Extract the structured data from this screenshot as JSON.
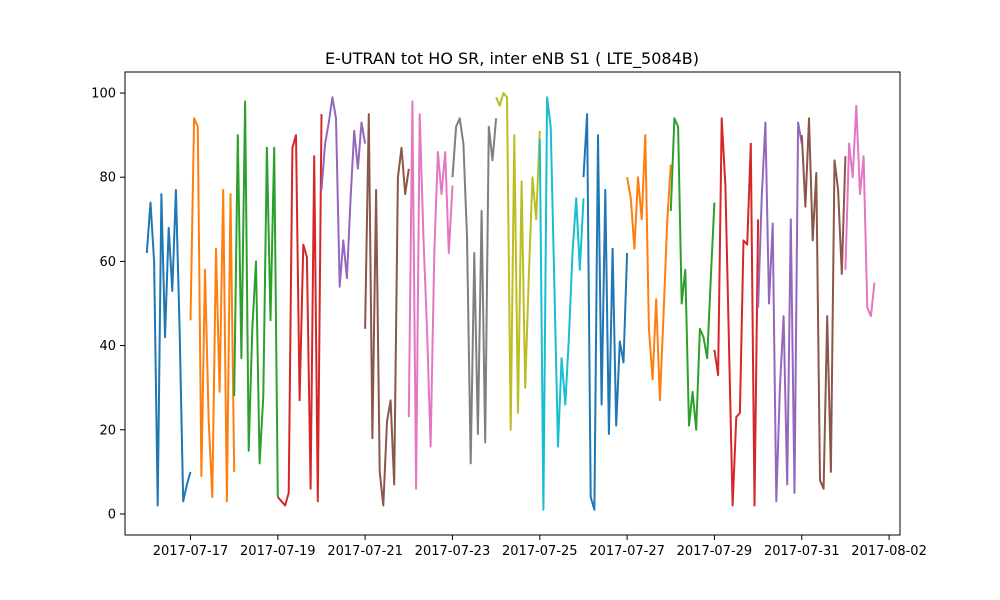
{
  "chart_data": {
    "type": "line",
    "title": "E-UTRAN tot HO SR, inter eNB S1 ( LTE_5084B)",
    "xlabel": "",
    "ylabel": "",
    "xlim": [
      "2017-07-15T12:00",
      "2017-08-02T06:00"
    ],
    "ylim": [
      -5,
      105
    ],
    "x_ticks": [
      "2017-07-17",
      "2017-07-19",
      "2017-07-21",
      "2017-07-23",
      "2017-07-25",
      "2017-07-27",
      "2017-07-29",
      "2017-07-31",
      "2017-08-02"
    ],
    "y_ticks": [
      0,
      20,
      40,
      60,
      80,
      100
    ],
    "grid": false,
    "series": [
      {
        "color": "#1f77b4",
        "x": [
          "2017-07-16T00:00",
          "2017-07-16T02:00",
          "2017-07-16T04:00",
          "2017-07-16T06:00",
          "2017-07-16T08:00",
          "2017-07-16T10:00",
          "2017-07-16T12:00",
          "2017-07-16T14:00",
          "2017-07-16T16:00",
          "2017-07-16T18:00",
          "2017-07-16T20:00",
          "2017-07-16T22:00",
          "2017-07-17T00:00"
        ],
        "values": [
          62,
          74,
          60,
          2,
          76,
          42,
          68,
          53,
          77,
          44,
          3,
          7,
          10
        ]
      },
      {
        "color": "#ff7f0e",
        "x": [
          "2017-07-17T00:00",
          "2017-07-17T02:00",
          "2017-07-17T04:00",
          "2017-07-17T06:00",
          "2017-07-17T08:00",
          "2017-07-17T10:00",
          "2017-07-17T12:00",
          "2017-07-17T14:00",
          "2017-07-17T16:00",
          "2017-07-17T18:00",
          "2017-07-17T20:00",
          "2017-07-17T22:00",
          "2017-07-18T00:00"
        ],
        "values": [
          46,
          94,
          92,
          9,
          58,
          22,
          4,
          63,
          29,
          77,
          3,
          76,
          10
        ]
      },
      {
        "color": "#2ca02c",
        "x": [
          "2017-07-18T00:00",
          "2017-07-18T02:00",
          "2017-07-18T04:00",
          "2017-07-18T06:00",
          "2017-07-18T08:00",
          "2017-07-18T10:00",
          "2017-07-18T12:00",
          "2017-07-18T14:00",
          "2017-07-18T16:00",
          "2017-07-18T18:00",
          "2017-07-18T20:00",
          "2017-07-18T22:00",
          "2017-07-19T00:00"
        ],
        "values": [
          28,
          90,
          37,
          98,
          15,
          44,
          60,
          12,
          28,
          87,
          46,
          87,
          4
        ]
      },
      {
        "color": "#d62728",
        "x": [
          "2017-07-19T00:00",
          "2017-07-19T02:00",
          "2017-07-19T04:00",
          "2017-07-19T06:00",
          "2017-07-19T08:00",
          "2017-07-19T10:00",
          "2017-07-19T12:00",
          "2017-07-19T14:00",
          "2017-07-19T16:00",
          "2017-07-19T18:00",
          "2017-07-19T20:00",
          "2017-07-19T22:00",
          "2017-07-20T00:00"
        ],
        "values": [
          4,
          3,
          2,
          5,
          87,
          90,
          27,
          64,
          61,
          6,
          85,
          3,
          95
        ]
      },
      {
        "color": "#9467bd",
        "x": [
          "2017-07-20T00:00",
          "2017-07-20T02:00",
          "2017-07-20T04:00",
          "2017-07-20T06:00",
          "2017-07-20T08:00",
          "2017-07-20T10:00",
          "2017-07-20T12:00",
          "2017-07-20T14:00",
          "2017-07-20T16:00",
          "2017-07-20T18:00",
          "2017-07-20T20:00",
          "2017-07-20T22:00",
          "2017-07-21T00:00"
        ],
        "values": [
          77,
          88,
          93,
          99,
          94,
          54,
          65,
          56,
          75,
          91,
          82,
          93,
          88
        ]
      },
      {
        "color": "#8c564b",
        "x": [
          "2017-07-21T00:00",
          "2017-07-21T02:00",
          "2017-07-21T04:00",
          "2017-07-21T06:00",
          "2017-07-21T08:00",
          "2017-07-21T10:00",
          "2017-07-21T12:00",
          "2017-07-21T14:00",
          "2017-07-21T16:00",
          "2017-07-21T18:00",
          "2017-07-21T20:00",
          "2017-07-21T22:00",
          "2017-07-22T00:00"
        ],
        "values": [
          44,
          95,
          18,
          77,
          10,
          2,
          22,
          27,
          7,
          80,
          87,
          76,
          82
        ]
      },
      {
        "color": "#e377c2",
        "x": [
          "2017-07-22T00:00",
          "2017-07-22T02:00",
          "2017-07-22T04:00",
          "2017-07-22T06:00",
          "2017-07-22T08:00",
          "2017-07-22T10:00",
          "2017-07-22T12:00",
          "2017-07-22T14:00",
          "2017-07-22T16:00",
          "2017-07-22T18:00",
          "2017-07-22T20:00",
          "2017-07-22T22:00",
          "2017-07-23T00:00"
        ],
        "values": [
          23,
          98,
          6,
          95,
          66,
          44,
          16,
          62,
          86,
          76,
          86,
          62,
          78
        ]
      },
      {
        "color": "#7f7f7f",
        "x": [
          "2017-07-23T00:00",
          "2017-07-23T02:00",
          "2017-07-23T04:00",
          "2017-07-23T06:00",
          "2017-07-23T08:00",
          "2017-07-23T10:00",
          "2017-07-23T12:00",
          "2017-07-23T14:00",
          "2017-07-23T16:00",
          "2017-07-23T18:00",
          "2017-07-23T20:00",
          "2017-07-23T22:00",
          "2017-07-24T00:00"
        ],
        "values": [
          80,
          92,
          94,
          88,
          66,
          12,
          62,
          19,
          72,
          17,
          92,
          84,
          94
        ]
      },
      {
        "color": "#bcbd22",
        "x": [
          "2017-07-24T00:00",
          "2017-07-24T02:00",
          "2017-07-24T04:00",
          "2017-07-24T06:00",
          "2017-07-24T08:00",
          "2017-07-24T10:00",
          "2017-07-24T12:00",
          "2017-07-24T14:00",
          "2017-07-24T16:00",
          "2017-07-24T18:00",
          "2017-07-24T20:00",
          "2017-07-24T22:00",
          "2017-07-25T00:00"
        ],
        "values": [
          99,
          97,
          100,
          99,
          20,
          90,
          24,
          79,
          30,
          57,
          80,
          70,
          91
        ]
      },
      {
        "color": "#17becf",
        "x": [
          "2017-07-25T00:00",
          "2017-07-25T02:00",
          "2017-07-25T04:00",
          "2017-07-25T06:00",
          "2017-07-25T08:00",
          "2017-07-25T10:00",
          "2017-07-25T12:00",
          "2017-07-25T14:00",
          "2017-07-25T16:00",
          "2017-07-25T18:00",
          "2017-07-25T20:00",
          "2017-07-25T22:00",
          "2017-07-26T00:00"
        ],
        "values": [
          89,
          1,
          99,
          92,
          55,
          16,
          37,
          26,
          42,
          62,
          75,
          58,
          75
        ]
      },
      {
        "color": "#1f77b4",
        "x": [
          "2017-07-26T00:00",
          "2017-07-26T02:00",
          "2017-07-26T04:00",
          "2017-07-26T06:00",
          "2017-07-26T08:00",
          "2017-07-26T10:00",
          "2017-07-26T12:00",
          "2017-07-26T14:00",
          "2017-07-26T16:00",
          "2017-07-26T18:00",
          "2017-07-26T20:00",
          "2017-07-26T22:00",
          "2017-07-27T00:00"
        ],
        "values": [
          80,
          95,
          4,
          1,
          90,
          26,
          77,
          19,
          63,
          21,
          41,
          36,
          62
        ]
      },
      {
        "color": "#ff7f0e",
        "x": [
          "2017-07-27T00:00",
          "2017-07-27T02:00",
          "2017-07-27T04:00",
          "2017-07-27T06:00",
          "2017-07-27T08:00",
          "2017-07-27T10:00",
          "2017-07-27T12:00",
          "2017-07-27T14:00",
          "2017-07-27T16:00",
          "2017-07-27T18:00",
          "2017-07-27T20:00",
          "2017-07-27T22:00",
          "2017-07-28T00:00"
        ],
        "values": [
          80,
          75,
          63,
          80,
          70,
          90,
          44,
          32,
          51,
          27,
          47,
          69,
          83
        ]
      },
      {
        "color": "#2ca02c",
        "x": [
          "2017-07-28T00:00",
          "2017-07-28T02:00",
          "2017-07-28T04:00",
          "2017-07-28T06:00",
          "2017-07-28T08:00",
          "2017-07-28T10:00",
          "2017-07-28T12:00",
          "2017-07-28T14:00",
          "2017-07-28T16:00",
          "2017-07-28T18:00",
          "2017-07-28T20:00",
          "2017-07-28T22:00",
          "2017-07-29T00:00"
        ],
        "values": [
          72,
          94,
          92,
          50,
          58,
          21,
          29,
          20,
          44,
          42,
          37,
          56,
          74
        ]
      },
      {
        "color": "#d62728",
        "x": [
          "2017-07-29T00:00",
          "2017-07-29T02:00",
          "2017-07-29T04:00",
          "2017-07-29T06:00",
          "2017-07-29T08:00",
          "2017-07-29T10:00",
          "2017-07-29T12:00",
          "2017-07-29T14:00",
          "2017-07-29T16:00",
          "2017-07-29T18:00",
          "2017-07-29T20:00",
          "2017-07-29T22:00",
          "2017-07-30T00:00"
        ],
        "values": [
          39,
          33,
          94,
          78,
          40,
          2,
          23,
          24,
          65,
          64,
          88,
          2,
          70
        ]
      },
      {
        "color": "#9467bd",
        "x": [
          "2017-07-30T00:00",
          "2017-07-30T02:00",
          "2017-07-30T04:00",
          "2017-07-30T06:00",
          "2017-07-30T08:00",
          "2017-07-30T10:00",
          "2017-07-30T12:00",
          "2017-07-30T14:00",
          "2017-07-30T16:00",
          "2017-07-30T18:00",
          "2017-07-30T20:00",
          "2017-07-30T22:00",
          "2017-07-31T00:00"
        ],
        "values": [
          49,
          75,
          93,
          50,
          69,
          3,
          30,
          47,
          7,
          70,
          5,
          93,
          88
        ]
      },
      {
        "color": "#8c564b",
        "x": [
          "2017-07-31T00:00",
          "2017-07-31T02:00",
          "2017-07-31T04:00",
          "2017-07-31T06:00",
          "2017-07-31T08:00",
          "2017-07-31T10:00",
          "2017-07-31T12:00",
          "2017-07-31T14:00",
          "2017-07-31T16:00",
          "2017-07-31T18:00",
          "2017-07-31T20:00",
          "2017-07-31T22:00",
          "2017-08-01T00:00"
        ],
        "values": [
          90,
          73,
          94,
          65,
          81,
          8,
          6,
          47,
          10,
          84,
          77,
          57,
          85
        ]
      },
      {
        "color": "#e377c2",
        "x": [
          "2017-08-01T00:00",
          "2017-08-01T02:00",
          "2017-08-01T04:00",
          "2017-08-01T06:00",
          "2017-08-01T08:00",
          "2017-08-01T10:00",
          "2017-08-01T12:00",
          "2017-08-01T14:00",
          "2017-08-01T16:00"
        ],
        "values": [
          58,
          88,
          80,
          97,
          76,
          85,
          49,
          47,
          55
        ]
      }
    ]
  }
}
